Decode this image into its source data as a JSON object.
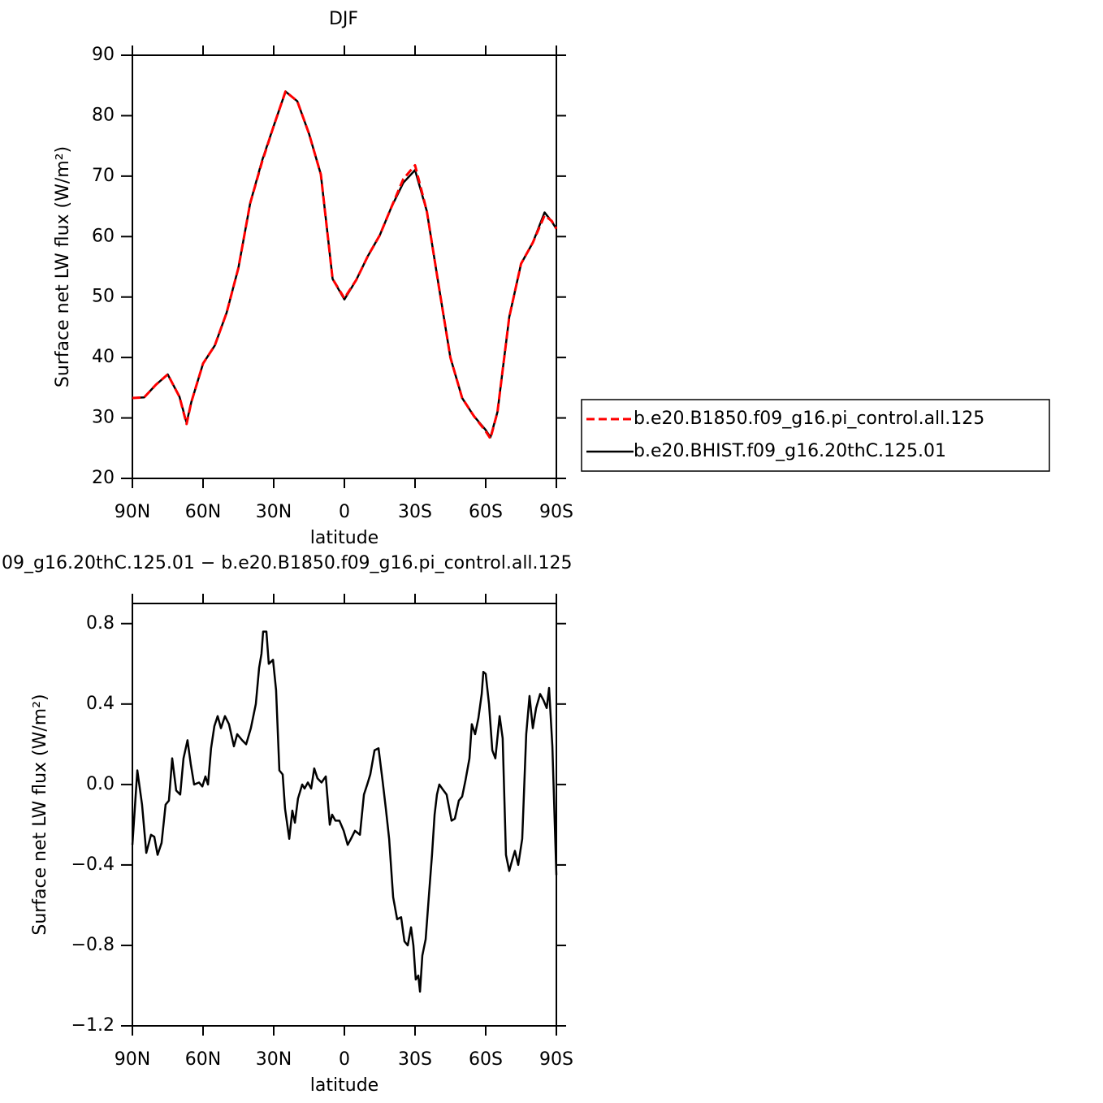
{
  "chart_data": [
    {
      "type": "line",
      "title": "DJF",
      "xlabel": "latitude",
      "ylabel": "Surface net LW flux (W/m²)",
      "x": [
        90,
        85,
        80,
        75,
        70,
        67,
        65,
        60,
        55,
        50,
        45,
        40,
        35,
        30,
        25,
        20,
        15,
        10,
        5,
        0,
        -5,
        -10,
        -15,
        -20,
        -25,
        -30,
        -35,
        -40,
        -45,
        -50,
        -55,
        -60,
        -62,
        -65,
        -70,
        -75,
        -80,
        -85,
        -88,
        -90
      ],
      "series": [
        {
          "name": "b.e20.B1850.f09_g16.pi_control.all.125",
          "color": "#ff0000",
          "dashed": true,
          "values": [
            33.3,
            33.4,
            35.5,
            37.2,
            33.5,
            29.0,
            32.6,
            39,
            42,
            47.4,
            54.8,
            65.5,
            72.3,
            78.3,
            84,
            82.4,
            77,
            70.3,
            53,
            49.8,
            52.8,
            56.8,
            60.2,
            64.9,
            69.5,
            71.8,
            64.2,
            52,
            40,
            33.3,
            30.3,
            27.8,
            26.6,
            31,
            46.7,
            55.5,
            59,
            63.5,
            62.6,
            61.3
          ]
        },
        {
          "name": "b.e20.BHIST.f09_g16.20thC.125.01",
          "color": "#000000",
          "dashed": false,
          "values": [
            33.3,
            33.4,
            35.5,
            37.2,
            33.5,
            29.2,
            32.6,
            39,
            42,
            47.4,
            54.8,
            65.5,
            72.5,
            78.3,
            84,
            82.4,
            77,
            70.3,
            53,
            49.6,
            52.8,
            56.8,
            60.2,
            64.9,
            68.9,
            71,
            64.2,
            52,
            40,
            33.3,
            30.3,
            28,
            26.8,
            31,
            46.7,
            55.5,
            59,
            64,
            62.5,
            61.3
          ]
        }
      ],
      "xlim": [
        90,
        -90
      ],
      "xticks": [
        {
          "value": 90,
          "label": "90N"
        },
        {
          "value": 60,
          "label": "60N"
        },
        {
          "value": 30,
          "label": "30N"
        },
        0,
        {
          "value": -30,
          "label": "30S"
        },
        {
          "value": -60,
          "label": "60S"
        },
        {
          "value": -90,
          "label": "90S"
        }
      ],
      "ylim": [
        20,
        90
      ],
      "yticks": [
        20,
        30,
        40,
        50,
        60,
        70,
        80,
        90
      ]
    },
    {
      "type": "line",
      "title": "09_g16.20thC.125.01 − b.e20.B1850.f09_g16.pi_control.all.125",
      "xlabel": "latitude",
      "ylabel": "Surface net LW flux (W/m²)",
      "x": [
        90,
        87.9,
        85.9,
        84.1,
        82.1,
        80.7,
        79.3,
        77.6,
        75.9,
        74.5,
        73.1,
        71.4,
        69.7,
        68.3,
        66.6,
        65.2,
        63.8,
        61.7,
        60.3,
        59.0,
        57.9,
        56.6,
        55.2,
        53.8,
        52.4,
        50.7,
        49.0,
        46.9,
        45.5,
        43.4,
        41.7,
        39.7,
        37.6,
        36.2,
        35.2,
        34.5,
        33.1,
        32.1,
        30.3,
        29.0,
        27.6,
        26.2,
        25.2,
        23.4,
        22.1,
        21.0,
        19.7,
        17.9,
        16.9,
        15.5,
        14.1,
        12.8,
        11.4,
        9.7,
        7.9,
        6.2,
        5.2,
        3.8,
        2.1,
        0.3,
        -1.4,
        -2.8,
        -4.5,
        -6.6,
        -8.3,
        -9.7,
        -11.0,
        -12.8,
        -14.5,
        -16.2,
        -17.6,
        -19.0,
        -20.7,
        -22.4,
        -24.1,
        -25.5,
        -26.9,
        -28.3,
        -29.3,
        -30.3,
        -31.4,
        -32.1,
        -33.1,
        -34.5,
        -35.9,
        -37.2,
        -38.3,
        -39.3,
        -40.3,
        -42.1,
        -43.4,
        -45.5,
        -46.9,
        -48.6,
        -50,
        -51.4,
        -53.1,
        -54.1,
        -55.5,
        -56.9,
        -58.3,
        -59.0,
        -60,
        -61.4,
        -62.8,
        -64.1,
        -65.9,
        -67.2,
        -68.6,
        -70,
        -71.4,
        -72.4,
        -73.8,
        -75.5,
        -77.2,
        -78.6,
        -80,
        -81.4,
        -83.1,
        -84.5,
        -85.9,
        -86.9,
        -88.3,
        -90
      ],
      "values": [
        -0.3,
        0.07,
        -0.1,
        -0.34,
        -0.25,
        -0.26,
        -0.35,
        -0.29,
        -0.1,
        -0.08,
        0.13,
        -0.03,
        -0.05,
        0.13,
        0.22,
        0.1,
        0.0,
        0.01,
        -0.01,
        0.04,
        0.0,
        0.18,
        0.29,
        0.34,
        0.28,
        0.34,
        0.3,
        0.19,
        0.25,
        0.22,
        0.2,
        0.28,
        0.4,
        0.58,
        0.65,
        0.76,
        0.76,
        0.6,
        0.62,
        0.47,
        0.07,
        0.05,
        -0.12,
        -0.27,
        -0.13,
        -0.19,
        -0.07,
        0.0,
        -0.02,
        0.01,
        -0.02,
        0.08,
        0.03,
        0.01,
        0.04,
        -0.2,
        -0.15,
        -0.18,
        -0.18,
        -0.23,
        -0.3,
        -0.27,
        -0.23,
        -0.25,
        -0.05,
        0.0,
        0.05,
        0.17,
        0.18,
        0.02,
        -0.12,
        -0.27,
        -0.56,
        -0.67,
        -0.66,
        -0.78,
        -0.8,
        -0.71,
        -0.8,
        -0.97,
        -0.95,
        -1.03,
        -0.85,
        -0.77,
        -0.55,
        -0.35,
        -0.15,
        -0.05,
        0.0,
        -0.03,
        -0.05,
        -0.18,
        -0.17,
        -0.08,
        -0.06,
        0.02,
        0.13,
        0.3,
        0.25,
        0.33,
        0.45,
        0.56,
        0.55,
        0.4,
        0.17,
        0.13,
        0.34,
        0.23,
        -0.35,
        -0.43,
        -0.37,
        -0.33,
        -0.4,
        -0.27,
        0.25,
        0.44,
        0.28,
        0.38,
        0.45,
        0.42,
        0.38,
        0.48,
        0.19,
        -0.45
      ],
      "color": "#000000",
      "xlim": [
        90,
        -90
      ],
      "xticks": [
        {
          "value": 90,
          "label": "90N"
        },
        {
          "value": 60,
          "label": "60N"
        },
        {
          "value": 30,
          "label": "30N"
        },
        0,
        {
          "value": -30,
          "label": "30S"
        },
        {
          "value": -60,
          "label": "60S"
        },
        {
          "value": -90,
          "label": "90S"
        }
      ],
      "ylim": [
        -1.2,
        0.9
      ],
      "yticks": [
        {
          "value": -1.2,
          "label": "−1.2"
        },
        {
          "value": -0.8,
          "label": "−0.8"
        },
        {
          "value": -0.4,
          "label": "−0.4"
        },
        {
          "value": 0,
          "label": "0.0"
        },
        0.4,
        0.8
      ]
    }
  ]
}
